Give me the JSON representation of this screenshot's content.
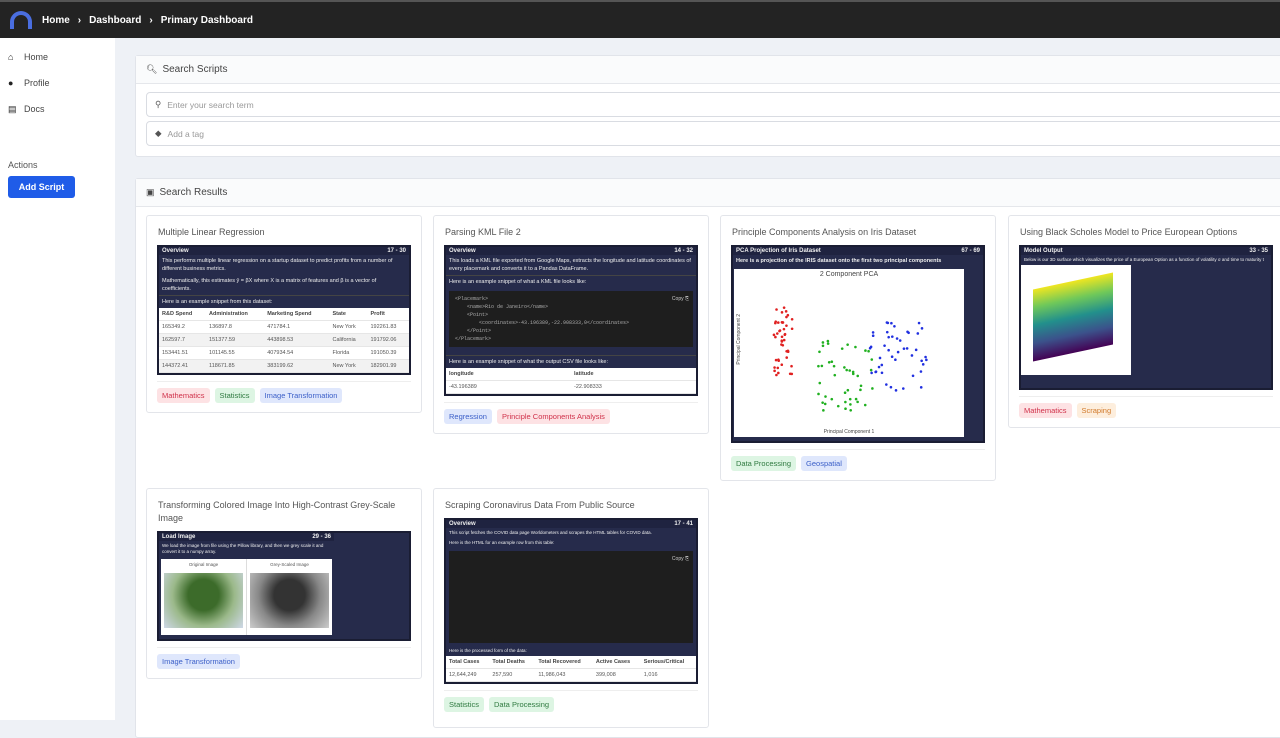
{
  "breadcrumb": [
    "Home",
    "Dashboard",
    "Primary Dashboard"
  ],
  "sidebar": {
    "items": [
      {
        "label": "Home",
        "icon": "home-icon"
      },
      {
        "label": "Profile",
        "icon": "user-icon"
      },
      {
        "label": "Docs",
        "icon": "book-icon"
      }
    ],
    "actions_label": "Actions",
    "add_script": "Add Script"
  },
  "search": {
    "title": "Search Scripts",
    "search_placeholder": "Enter your search term",
    "tag_placeholder": "Add a tag"
  },
  "results": {
    "title": "Search Results"
  },
  "colors": {
    "accent": "#1f5ce8",
    "topbar": "#232323",
    "thumb": "#262b4b"
  },
  "cards": [
    {
      "title": "Multiple Linear Regression",
      "section": "Overview",
      "lines": "17 - 30",
      "text": "This performs multiple linear regression on a startup dataset to predict profits from a number of different business metrics.",
      "text2": "Mathematically, this estimates ŷ = βX where X is a matrix of features and β is a vector of coefficients.",
      "text3": "Here is an example snippet from this dataset:",
      "table": {
        "headers": [
          "R&D Spend",
          "Administration",
          "Marketing Spend",
          "State",
          "Profit"
        ],
        "rows": [
          [
            "165349.2",
            "136897.8",
            "471784.1",
            "New York",
            "192261.83"
          ],
          [
            "162597.7",
            "151377.59",
            "443898.53",
            "California",
            "191792.06"
          ],
          [
            "153441.51",
            "101145.55",
            "407934.54",
            "Florida",
            "191050.39"
          ],
          [
            "144372.41",
            "118671.85",
            "383199.62",
            "New York",
            "182901.99"
          ]
        ]
      },
      "tags": [
        "Mathematics",
        "Statistics",
        "Image Transformation"
      ]
    },
    {
      "title": "Parsing KML File 2",
      "section": "Overview",
      "lines": "14 - 32",
      "text": "This loads a KML file exported from Google Maps, extracts the longitude and latitude coordinates of every placemark and converts it to a Pandas DataFrame.",
      "text2": "Here is an example snippet of what a KML file looks like:",
      "code": [
        "<Placemark>",
        "    <name>Rio de Janeiro</name>",
        "    <Point>",
        "        <coordinates>-43.196389,-22.908333,0</coordinates>",
        "    </Point>",
        "</Placemark>"
      ],
      "copy": "Copy",
      "text3": "Here is an example snippet of what the output CSV file looks like:",
      "table": {
        "headers": [
          "longitude",
          "latitude"
        ],
        "rows": [
          [
            "-43.196389",
            "-22.908333"
          ]
        ]
      },
      "tags": [
        "Regression",
        "Principle Components Analysis"
      ]
    },
    {
      "title": "Principle Components Analysis on Iris Dataset",
      "section": "PCA Projection of Iris Dataset",
      "lines": "67 - 69",
      "text": "Here is a projection of the IRIS dataset onto the first two principal components",
      "plot_title": "2 Component PCA",
      "xlabel": "Principal Component 1",
      "ylabel": "Principal Component 2",
      "tags": [
        "Data Processing",
        "Geospatial"
      ]
    },
    {
      "title": "Using Black Scholes Model to Price European Options",
      "section": "Model Output",
      "lines": "33 - 35",
      "text": "Below is our 3D surface which visualizes the price of a European Option as a function of volatility σ and time to maturity t",
      "tags": [
        "Mathematics",
        "Scraping"
      ]
    },
    {
      "title": "Transforming Colored Image Into High-Contrast Grey-Scale Image",
      "section": "Load Image",
      "lines": "29 - 36",
      "text": "We load the image from file using the Pillow library, and then we grey scale it and convert it to a numpy array.",
      "col1": "Original Image",
      "col2": "Grey-Scaled Image",
      "tags": [
        "Image Transformation"
      ]
    },
    {
      "title": "Scraping Coronavirus Data From Public Source",
      "section": "Overview",
      "lines": "17 - 41",
      "text": "This script fetches the COVID data page Worldometers and scrapes the HTML tables for COVID data.",
      "text2": "Here is the HTML for an example row from this table:",
      "copy": "Copy",
      "text3": "Here is the processed form of the data:",
      "table": {
        "headers": [
          "Total Cases",
          "Total Deaths",
          "Total Recovered",
          "Active Cases",
          "Serious/Critical"
        ],
        "rows": [
          [
            "12,644,249",
            "257,590",
            "11,986,043",
            "399,008",
            "1,016"
          ]
        ]
      },
      "tags": [
        "Statistics",
        "Data Processing"
      ]
    }
  ]
}
